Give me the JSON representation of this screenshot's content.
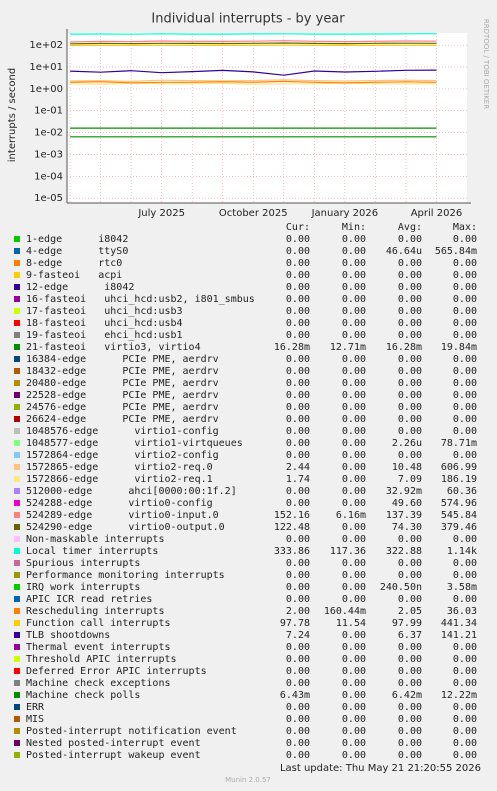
{
  "chart_data": {
    "type": "line",
    "title": "Individual interrupts - by year",
    "y_label": "interrupts / second",
    "side_text": "RRDTOOL / TOBI OETIKER",
    "log_scale": true,
    "grid": true,
    "ylim": [
      6e-06,
      360
    ],
    "yticks": [
      {
        "value": 1e-05,
        "label": "1e-05"
      },
      {
        "value": 0.0001,
        "label": "1e-04"
      },
      {
        "value": 0.001,
        "label": "1e-03"
      },
      {
        "value": 0.01,
        "label": "1e-02"
      },
      {
        "value": 0.1,
        "label": "1e-01"
      },
      {
        "value": 1,
        "label": "1e+00"
      },
      {
        "value": 10,
        "label": "1e+01"
      },
      {
        "value": 100,
        "label": "1e+02"
      }
    ],
    "categories": [
      null,
      null,
      null,
      "July 2025",
      null,
      null,
      "October 2025",
      null,
      null,
      "January 2026",
      null,
      null,
      "April 2026"
    ],
    "columns": [
      "Cur:",
      "Min:",
      "Avg:",
      "Max:"
    ],
    "series": [
      {
        "name": "1-edge      i8042",
        "color": "#00cc00",
        "stats": [
          "0.00",
          "0.00",
          "0.00",
          "0.00"
        ]
      },
      {
        "name": "4-edge      ttyS0",
        "color": "#0066b3",
        "stats": [
          "0.00",
          "0.00",
          "46.64u",
          "565.84m"
        ]
      },
      {
        "name": "8-edge      rtc0",
        "color": "#ff8000",
        "stats": [
          "0.00",
          "0.00",
          "0.00",
          "0.00"
        ]
      },
      {
        "name": "9-fasteoi   acpi",
        "color": "#ffcc00",
        "stats": [
          "0.00",
          "0.00",
          "0.00",
          "0.00"
        ]
      },
      {
        "name": "12-edge      i8042",
        "color": "#330099",
        "stats": [
          "0.00",
          "0.00",
          "0.00",
          "0.00"
        ]
      },
      {
        "name": "16-fasteoi   uhci_hcd:usb2, i801_smbus",
        "color": "#990099",
        "stats": [
          "0.00",
          "0.00",
          "0.00",
          "0.00"
        ]
      },
      {
        "name": "17-fasteoi   uhci_hcd:usb3",
        "color": "#ccff00",
        "stats": [
          "0.00",
          "0.00",
          "0.00",
          "0.00"
        ]
      },
      {
        "name": "18-fasteoi   uhci_hcd:usb4",
        "color": "#ff0000",
        "stats": [
          "0.00",
          "0.00",
          "0.00",
          "0.00"
        ]
      },
      {
        "name": "19-fasteoi   ehci_hcd:usb1",
        "color": "#808080",
        "stats": [
          "0.00",
          "0.00",
          "0.00",
          "0.00"
        ]
      },
      {
        "name": "21-fasteoi   virtio3, virtio4",
        "color": "#008f00",
        "stats": [
          "16.28m",
          "12.71m",
          "16.28m",
          "19.84m"
        ],
        "values": [
          0.016,
          0.016,
          0.016,
          0.016,
          0.016,
          0.016,
          0.016,
          0.016,
          0.016,
          0.016,
          0.016,
          0.016,
          0.016
        ]
      },
      {
        "name": "16384-edge      PCIe PME, aerdrv",
        "color": "#00487d",
        "stats": [
          "0.00",
          "0.00",
          "0.00",
          "0.00"
        ]
      },
      {
        "name": "18432-edge      PCIe PME, aerdrv",
        "color": "#b35a00",
        "stats": [
          "0.00",
          "0.00",
          "0.00",
          "0.00"
        ]
      },
      {
        "name": "20480-edge      PCIe PME, aerdrv",
        "color": "#b38f00",
        "stats": [
          "0.00",
          "0.00",
          "0.00",
          "0.00"
        ]
      },
      {
        "name": "22528-edge      PCIe PME, aerdrv",
        "color": "#6b006b",
        "stats": [
          "0.00",
          "0.00",
          "0.00",
          "0.00"
        ]
      },
      {
        "name": "24576-edge      PCIe PME, aerdrv",
        "color": "#8fb300",
        "stats": [
          "0.00",
          "0.00",
          "0.00",
          "0.00"
        ]
      },
      {
        "name": "26624-edge      PCIe PME, aerdrv",
        "color": "#b30000",
        "stats": [
          "0.00",
          "0.00",
          "0.00",
          "0.00"
        ]
      },
      {
        "name": "1048576-edge      virtio1-config",
        "color": "#bebebe",
        "stats": [
          "0.00",
          "0.00",
          "0.00",
          "0.00"
        ]
      },
      {
        "name": "1048577-edge      virtio1-virtqueues",
        "color": "#80ff80",
        "stats": [
          "0.00",
          "0.00",
          "2.26u",
          "78.71m"
        ]
      },
      {
        "name": "1572864-edge      virtio2-config",
        "color": "#80c9ff",
        "stats": [
          "0.00",
          "0.00",
          "0.00",
          "0.00"
        ]
      },
      {
        "name": "1572865-edge      virtio2-req.0",
        "color": "#ffc080",
        "stats": [
          "2.44",
          "0.00",
          "10.48",
          "606.99"
        ],
        "values": [
          2.3,
          2.4,
          2.2,
          2.5,
          2.4,
          2.3,
          2.4,
          2.6,
          2.4,
          2.3,
          2.4,
          2.5,
          2.4
        ]
      },
      {
        "name": "1572866-edge      virtio2-req.1",
        "color": "#ffe680",
        "stats": [
          "1.74",
          "0.00",
          "7.09",
          "186.19"
        ],
        "values": [
          1.7,
          1.6,
          1.8,
          1.7,
          1.7,
          1.8,
          1.6,
          1.7,
          1.7,
          1.8,
          1.7,
          1.7,
          1.7
        ]
      },
      {
        "name": "512000-edge      ahci[0000:00:1f.2]",
        "color": "#aa80ff",
        "stats": [
          "0.00",
          "0.00",
          "32.92m",
          "60.36"
        ]
      },
      {
        "name": "524288-edge      virtio0-config",
        "color": "#ee00cc",
        "stats": [
          "0.00",
          "0.00",
          "49.60",
          "574.96"
        ]
      },
      {
        "name": "524289-edge      virtio0-input.0",
        "color": "#ff8080",
        "stats": [
          "152.16",
          "6.16m",
          "137.39",
          "545.84"
        ],
        "values": [
          140,
          150,
          145,
          155,
          150,
          148,
          152,
          160,
          150,
          145,
          150,
          155,
          152
        ]
      },
      {
        "name": "524290-edge      virtio0-output.0",
        "color": "#666600",
        "stats": [
          "122.48",
          "0.00",
          "74.30",
          "379.46"
        ],
        "values": [
          115,
          120,
          118,
          122,
          120,
          119,
          121,
          125,
          120,
          118,
          121,
          123,
          122
        ]
      },
      {
        "name": "Non-maskable interrupts",
        "color": "#ffbfff",
        "stats": [
          "0.00",
          "0.00",
          "0.00",
          "0.00"
        ]
      },
      {
        "name": "Local timer interrupts",
        "color": "#00ffcc",
        "stats": [
          "333.86",
          "117.36",
          "322.88",
          "1.14k"
        ],
        "values": [
          320,
          325,
          318,
          330,
          322,
          320,
          326,
          330,
          322,
          320,
          325,
          330,
          334
        ]
      },
      {
        "name": "Spurious interrupts",
        "color": "#cc6699",
        "stats": [
          "0.00",
          "0.00",
          "0.00",
          "0.00"
        ]
      },
      {
        "name": "Performance monitoring interrupts",
        "color": "#999900",
        "stats": [
          "0.00",
          "0.00",
          "0.00",
          "0.00"
        ]
      },
      {
        "name": "IRQ work interrupts",
        "color": "#00cc00",
        "stats": [
          "0.00",
          "0.00",
          "240.50n",
          "3.58m"
        ]
      },
      {
        "name": "APIC ICR read retries",
        "color": "#0066b3",
        "stats": [
          "0.00",
          "0.00",
          "0.00",
          "0.00"
        ]
      },
      {
        "name": "Rescheduling interrupts",
        "color": "#ff8000",
        "stats": [
          "2.00",
          "160.44m",
          "2.05",
          "36.03"
        ],
        "values": [
          2.0,
          2.1,
          1.9,
          2.0,
          2.0,
          2.1,
          2.0,
          2.2,
          2.0,
          1.9,
          2.0,
          2.1,
          2.0
        ]
      },
      {
        "name": "Function call interrupts",
        "color": "#ffcc00",
        "stats": [
          "97.78",
          "11.54",
          "97.99",
          "441.34"
        ],
        "values": [
          96,
          98,
          97,
          99,
          98,
          97,
          98,
          100,
          98,
          97,
          98,
          99,
          98
        ]
      },
      {
        "name": "TLB shootdowns",
        "color": "#330099",
        "stats": [
          "7.24",
          "0.00",
          "6.37",
          "141.21"
        ],
        "values": [
          6.5,
          5.8,
          6.8,
          5.5,
          6.2,
          7.0,
          6.0,
          4.2,
          6.6,
          5.9,
          6.4,
          7.1,
          7.2
        ]
      },
      {
        "name": "Thermal event interrupts",
        "color": "#990099",
        "stats": [
          "0.00",
          "0.00",
          "0.00",
          "0.00"
        ]
      },
      {
        "name": "Threshold APIC interrupts",
        "color": "#ccff00",
        "stats": [
          "0.00",
          "0.00",
          "0.00",
          "0.00"
        ]
      },
      {
        "name": "Deferred Error APIC interrupts",
        "color": "#ff0000",
        "stats": [
          "0.00",
          "0.00",
          "0.00",
          "0.00"
        ]
      },
      {
        "name": "Machine check exceptions",
        "color": "#808080",
        "stats": [
          "0.00",
          "0.00",
          "0.00",
          "0.00"
        ]
      },
      {
        "name": "Machine check polls",
        "color": "#008f00",
        "stats": [
          "6.43m",
          "0.00",
          "6.42m",
          "12.22m"
        ],
        "values": [
          0.0064,
          0.0064,
          0.0064,
          0.0064,
          0.0064,
          0.0064,
          0.0064,
          0.0064,
          0.0064,
          0.0064,
          0.0064,
          0.0064,
          0.0064
        ]
      },
      {
        "name": "ERR",
        "color": "#00487d",
        "stats": [
          "0.00",
          "0.00",
          "0.00",
          "0.00"
        ]
      },
      {
        "name": "MIS",
        "color": "#b35a00",
        "stats": [
          "0.00",
          "0.00",
          "0.00",
          "0.00"
        ]
      },
      {
        "name": "Posted-interrupt notification event",
        "color": "#b38f00",
        "stats": [
          "0.00",
          "0.00",
          "0.00",
          "0.00"
        ]
      },
      {
        "name": "Nested posted-interrupt event",
        "color": "#6b006b",
        "stats": [
          "0.00",
          "0.00",
          "0.00",
          "0.00"
        ]
      },
      {
        "name": "Posted-interrupt wakeup event",
        "color": "#8fb300",
        "stats": [
          "0.00",
          "0.00",
          "0.00",
          "0.00"
        ]
      }
    ],
    "last_update": "Last update: Thu May 21 21:20:55 2026",
    "footer": "Munin 2.0.57"
  }
}
